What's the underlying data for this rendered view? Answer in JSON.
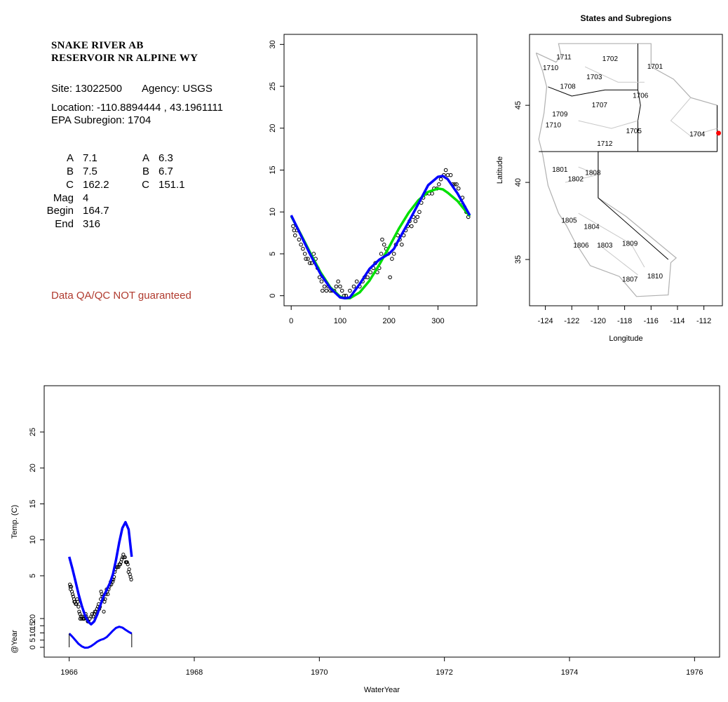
{
  "header": {
    "site_line1": "SNAKE RIVER AB",
    "site_line2": "RESERVOIR NR ALPINE WY",
    "site": "Site: 13022500",
    "agency": "Agency: USGS",
    "location": "Location: -110.8894444 , 43.1961111",
    "subregion": "EPA Subregion: 1704",
    "qa_note": "Data QA/QC NOT guaranteed"
  },
  "params": {
    "rows": [
      {
        "label": "A",
        "v1": "7.1",
        "label2": "A",
        "v2": "6.3"
      },
      {
        "label": "B",
        "v1": "7.5",
        "label2": "B",
        "v2": "6.7"
      },
      {
        "label": "C",
        "v1": "162.2",
        "label2": "C",
        "v2": "151.1"
      },
      {
        "label": "Mag",
        "v1": "4"
      },
      {
        "label": "Begin",
        "v1": "164.7"
      },
      {
        "label": "End",
        "v1": "316"
      }
    ]
  },
  "colors": {
    "fit1": "#00e000",
    "fit2": "#0000ff",
    "site_marker": "#ff0000",
    "points": "#000000"
  },
  "chart_data": [
    {
      "type": "scatter",
      "title": "",
      "xlabel": "",
      "ylabel": "",
      "xlim": [
        0,
        365
      ],
      "ylim": [
        0,
        30
      ],
      "xticks": [
        0,
        100,
        200,
        300
      ],
      "yticks": [
        0,
        5,
        10,
        15,
        20,
        25,
        30
      ],
      "points": [
        [
          4,
          8.3
        ],
        [
          6,
          7.8
        ],
        [
          8,
          7.2
        ],
        [
          12,
          7.8
        ],
        [
          16,
          6.7
        ],
        [
          20,
          6.1
        ],
        [
          24,
          5.6
        ],
        [
          28,
          5.0
        ],
        [
          30,
          4.4
        ],
        [
          34,
          4.4
        ],
        [
          38,
          3.9
        ],
        [
          42,
          3.9
        ],
        [
          46,
          5.0
        ],
        [
          50,
          4.4
        ],
        [
          54,
          3.3
        ],
        [
          58,
          2.2
        ],
        [
          62,
          1.7
        ],
        [
          64,
          0.6
        ],
        [
          68,
          1.1
        ],
        [
          72,
          0.6
        ],
        [
          76,
          1.1
        ],
        [
          80,
          0.6
        ],
        [
          84,
          0.6
        ],
        [
          88,
          0.6
        ],
        [
          92,
          1.1
        ],
        [
          96,
          1.7
        ],
        [
          100,
          1.1
        ],
        [
          104,
          0.6
        ],
        [
          108,
          0.0
        ],
        [
          112,
          0.0
        ],
        [
          120,
          0.6
        ],
        [
          128,
          1.1
        ],
        [
          134,
          1.7
        ],
        [
          140,
          1.1
        ],
        [
          146,
          1.7
        ],
        [
          150,
          2.2
        ],
        [
          156,
          2.2
        ],
        [
          162,
          2.8
        ],
        [
          168,
          3.3
        ],
        [
          172,
          3.9
        ],
        [
          176,
          2.8
        ],
        [
          180,
          3.3
        ],
        [
          184,
          5.0
        ],
        [
          186,
          6.7
        ],
        [
          190,
          6.1
        ],
        [
          194,
          5.6
        ],
        [
          198,
          5.0
        ],
        [
          202,
          2.2
        ],
        [
          206,
          4.4
        ],
        [
          210,
          5.0
        ],
        [
          214,
          6.1
        ],
        [
          218,
          7.2
        ],
        [
          222,
          6.7
        ],
        [
          226,
          6.1
        ],
        [
          230,
          7.2
        ],
        [
          234,
          7.8
        ],
        [
          238,
          8.3
        ],
        [
          242,
          8.9
        ],
        [
          246,
          8.3
        ],
        [
          250,
          9.4
        ],
        [
          254,
          8.9
        ],
        [
          258,
          9.4
        ],
        [
          262,
          10.0
        ],
        [
          266,
          11.1
        ],
        [
          270,
          11.7
        ],
        [
          276,
          12.2
        ],
        [
          282,
          12.2
        ],
        [
          288,
          12.2
        ],
        [
          292,
          12.8
        ],
        [
          298,
          12.8
        ],
        [
          302,
          13.3
        ],
        [
          306,
          13.9
        ],
        [
          312,
          14.4
        ],
        [
          316,
          15.0
        ],
        [
          320,
          14.4
        ],
        [
          326,
          14.4
        ],
        [
          330,
          13.3
        ],
        [
          334,
          13.3
        ],
        [
          338,
          13.3
        ],
        [
          342,
          12.8
        ],
        [
          346,
          11.1
        ],
        [
          350,
          11.7
        ],
        [
          354,
          10.6
        ],
        [
          358,
          10.0
        ],
        [
          362,
          9.4
        ]
      ],
      "series": [
        {
          "values_x": [
            0,
            20,
            40,
            60,
            80,
            100,
            110,
            120,
            140,
            160,
            180,
            200,
            220,
            240,
            260,
            280,
            300,
            310,
            320,
            340,
            365
          ],
          "values_y": [
            9.5,
            7.3,
            5.0,
            2.8,
            1.0,
            -0.1,
            -0.3,
            -0.3,
            0.4,
            1.8,
            3.7,
            5.8,
            8.0,
            9.9,
            11.4,
            12.4,
            12.8,
            12.7,
            12.3,
            11.3,
            9.5
          ]
        },
        {
          "values_x": [
            0,
            20,
            40,
            60,
            80,
            100,
            110,
            120,
            140,
            160,
            180,
            200,
            210,
            220,
            240,
            260,
            280,
            300,
            310,
            320,
            340,
            365
          ],
          "values_y": [
            9.6,
            7.2,
            4.8,
            2.6,
            0.9,
            -0.2,
            -0.3,
            -0.2,
            1.4,
            3.2,
            4.3,
            5.0,
            5.6,
            6.7,
            8.8,
            11.0,
            13.2,
            14.2,
            14.3,
            13.9,
            12.2,
            9.6
          ]
        }
      ]
    },
    {
      "type": "map",
      "title": "States and Subregions",
      "xlabel": "Longitude",
      "ylabel": "Latitude",
      "xlim": [
        -125,
        -110
      ],
      "ylim": [
        32,
        49
      ],
      "xticks": [
        -124,
        -122,
        -120,
        -118,
        -116,
        -114,
        -112
      ],
      "yticks": [
        35,
        40,
        45
      ],
      "site": {
        "lon": -110.889,
        "lat": 43.196
      },
      "regions": [
        {
          "label": "1702",
          "lon": -119.1,
          "lat": 48.0
        },
        {
          "label": "1701",
          "lon": -115.7,
          "lat": 47.5
        },
        {
          "label": "1711",
          "lon": -122.6,
          "lat": 48.1
        },
        {
          "label": "1710",
          "lon": -123.6,
          "lat": 47.4
        },
        {
          "label": "1703",
          "lon": -120.3,
          "lat": 46.8
        },
        {
          "label": "1708",
          "lon": -122.3,
          "lat": 46.2
        },
        {
          "label": "1706",
          "lon": -116.8,
          "lat": 45.6
        },
        {
          "label": "1707",
          "lon": -119.9,
          "lat": 45.0
        },
        {
          "label": "1709",
          "lon": -122.9,
          "lat": 44.4
        },
        {
          "label": "1710",
          "lon": -123.4,
          "lat": 43.7
        },
        {
          "label": "1705",
          "lon": -117.3,
          "lat": 43.3
        },
        {
          "label": "1704",
          "lon": -112.5,
          "lat": 43.1
        },
        {
          "label": "1712",
          "lon": -119.5,
          "lat": 42.5
        },
        {
          "label": "1801",
          "lon": -122.9,
          "lat": 40.8
        },
        {
          "label": "1808",
          "lon": -120.4,
          "lat": 40.6
        },
        {
          "label": "1802",
          "lon": -121.7,
          "lat": 40.2
        },
        {
          "label": "1805",
          "lon": -122.2,
          "lat": 37.5
        },
        {
          "label": "1804",
          "lon": -120.5,
          "lat": 37.1
        },
        {
          "label": "1809",
          "lon": -117.6,
          "lat": 36.0
        },
        {
          "label": "1806",
          "lon": -121.3,
          "lat": 35.9
        },
        {
          "label": "1803",
          "lon": -119.5,
          "lat": 35.9
        },
        {
          "label": "1810",
          "lon": -115.7,
          "lat": 33.9
        },
        {
          "label": "1807",
          "lon": -117.6,
          "lat": 33.7
        }
      ]
    },
    {
      "type": "line",
      "title": "",
      "xlabel": "WaterYear",
      "ylabel": "Temp. (C)",
      "ylabel2": "@Year",
      "xlim": [
        1965.6,
        1976.4
      ],
      "xticks": [
        1966,
        1968,
        1970,
        1972,
        1974,
        1976
      ],
      "yticks": [
        5,
        10,
        15,
        20,
        25
      ],
      "yticks2": [
        0,
        5,
        10,
        15,
        20
      ],
      "curve_x": [
        1966.0,
        1966.05,
        1966.1,
        1966.15,
        1966.2,
        1966.25,
        1966.3,
        1966.35,
        1966.4,
        1966.45,
        1966.5,
        1966.55,
        1966.6,
        1966.65,
        1966.7,
        1966.75,
        1966.8,
        1966.85,
        1966.9,
        1966.95,
        1967.0
      ],
      "curve_y": [
        9.6,
        8.0,
        6.2,
        4.4,
        2.8,
        1.5,
        0.6,
        0.2,
        0.6,
        1.6,
        2.9,
        4.1,
        5.0,
        5.9,
        7.2,
        9.2,
        11.6,
        13.6,
        14.4,
        13.4,
        9.6
      ],
      "bottom_y": [
        9.6,
        7.4,
        4.9,
        2.4,
        0.7,
        -0.3,
        -0.2,
        0.8,
        2.3,
        4.0,
        5.1,
        5.8,
        7.1,
        9.3,
        11.6,
        13.5,
        14.3,
        13.7,
        12.2,
        10.8,
        9.6
      ]
    }
  ]
}
